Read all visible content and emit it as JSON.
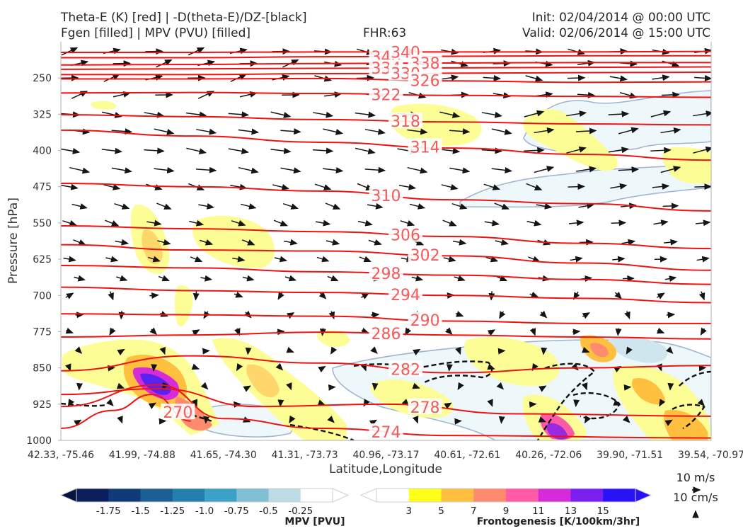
{
  "header": {
    "line1_left": "Theta-E (K) [red] | -D(theta-E)/DZ-[black]",
    "line2_left": "Fgen [filled] | MPV (PVU) [filled]",
    "fhr": "FHR:63",
    "init": "Init: 02/04/2014 @ 00:00 UTC",
    "valid": "Valid: 02/06/2014 @ 15:00 UTC"
  },
  "chart_data": {
    "type": "cross-section",
    "xlabel": "Latitude,Longitude",
    "ylabel": "Pressure [hPa]",
    "x_ticks": [
      "42.33, -75.46",
      "41.99, -74.88",
      "41.65, -74.30",
      "41.31, -73.73",
      "40.96, -73.17",
      "40.61, -72.61",
      "40.26, -72.06",
      "39.90, -71.51",
      "39.54, -70.97"
    ],
    "y_ticks": [
      250,
      325,
      400,
      475,
      550,
      625,
      700,
      775,
      850,
      925,
      1000
    ],
    "ylim": [
      1000,
      175
    ],
    "theta_e_contours": [
      {
        "label": "346",
        "pts": [
          [
            0,
            208
          ],
          [
            20,
            208
          ],
          [
            40,
            206
          ],
          [
            60,
            205
          ],
          [
            80,
            204
          ],
          [
            100,
            204
          ]
        ]
      },
      {
        "label": "340",
        "pts": [
          [
            0,
            197
          ],
          [
            20,
            197
          ],
          [
            40,
            196
          ],
          [
            60,
            196
          ],
          [
            80,
            196
          ],
          [
            100,
            195
          ]
        ]
      },
      {
        "label": "338",
        "pts": [
          [
            0,
            223
          ],
          [
            20,
            222
          ],
          [
            40,
            220
          ],
          [
            60,
            219
          ],
          [
            80,
            218
          ],
          [
            100,
            218
          ]
        ]
      },
      {
        "label": "334",
        "pts": [
          [
            0,
            232
          ],
          [
            20,
            231
          ],
          [
            40,
            230
          ],
          [
            60,
            229
          ],
          [
            80,
            228
          ],
          [
            100,
            227
          ]
        ]
      },
      {
        "label": "330",
        "pts": [
          [
            0,
            243
          ],
          [
            20,
            243
          ],
          [
            40,
            241
          ],
          [
            60,
            240
          ],
          [
            80,
            239
          ],
          [
            100,
            238
          ]
        ]
      },
      {
        "label": "326",
        "pts": [
          [
            0,
            252
          ],
          [
            20,
            252
          ],
          [
            40,
            251
          ],
          [
            60,
            256
          ],
          [
            80,
            259
          ],
          [
            100,
            258
          ]
        ]
      },
      {
        "label": "322",
        "pts": [
          [
            0,
            281
          ],
          [
            20,
            280
          ],
          [
            40,
            282
          ],
          [
            60,
            286
          ],
          [
            80,
            288
          ],
          [
            100,
            290
          ]
        ]
      },
      {
        "label": "318",
        "pts": [
          [
            0,
            326
          ],
          [
            20,
            330
          ],
          [
            40,
            336
          ],
          [
            60,
            341
          ],
          [
            80,
            345
          ],
          [
            100,
            347
          ]
        ]
      },
      {
        "label": "314",
        "pts": [
          [
            0,
            358
          ],
          [
            20,
            370
          ],
          [
            40,
            383
          ],
          [
            60,
            395
          ],
          [
            80,
            408
          ],
          [
            100,
            420
          ]
        ]
      },
      {
        "label": "310",
        "pts": [
          [
            0,
            468
          ],
          [
            20,
            475
          ],
          [
            40,
            484
          ],
          [
            60,
            502
          ],
          [
            80,
            510
          ],
          [
            100,
            525
          ]
        ]
      },
      {
        "label": "306",
        "pts": [
          [
            0,
            556
          ],
          [
            20,
            562
          ],
          [
            40,
            568
          ],
          [
            60,
            578
          ],
          [
            80,
            592
          ],
          [
            100,
            603
          ]
        ]
      },
      {
        "label": "302",
        "pts": [
          [
            0,
            595
          ],
          [
            20,
            606
          ],
          [
            40,
            608
          ],
          [
            60,
            618
          ],
          [
            80,
            633
          ],
          [
            100,
            648
          ]
        ]
      },
      {
        "label": "298",
        "pts": [
          [
            0,
            638
          ],
          [
            20,
            643
          ],
          [
            40,
            651
          ],
          [
            60,
            658
          ],
          [
            80,
            667
          ],
          [
            100,
            677
          ]
        ]
      },
      {
        "label": "294",
        "pts": [
          [
            0,
            683
          ],
          [
            20,
            690
          ],
          [
            40,
            694
          ],
          [
            60,
            700
          ],
          [
            80,
            706
          ],
          [
            100,
            715
          ]
        ]
      },
      {
        "label": "290",
        "pts": [
          [
            0,
            738
          ],
          [
            20,
            740
          ],
          [
            40,
            743
          ],
          [
            60,
            753
          ],
          [
            80,
            758
          ],
          [
            100,
            758
          ]
        ]
      },
      {
        "label": "286",
        "pts": [
          [
            0,
            786
          ],
          [
            20,
            782
          ],
          [
            40,
            776
          ],
          [
            60,
            782
          ],
          [
            80,
            786
          ],
          [
            100,
            790
          ]
        ]
      },
      {
        "label": "282",
        "pts": [
          [
            0,
            856
          ],
          [
            20,
            825
          ],
          [
            40,
            840
          ],
          [
            60,
            860
          ],
          [
            80,
            850
          ],
          [
            100,
            845
          ]
        ]
      },
      {
        "label": "278",
        "pts": [
          [
            0,
            905
          ],
          [
            15,
            893
          ],
          [
            30,
            930
          ],
          [
            50,
            925
          ],
          [
            70,
            945
          ],
          [
            100,
            950
          ]
        ]
      },
      {
        "label": "274",
        "pts": [
          [
            0,
            930
          ],
          [
            15,
            885
          ],
          [
            25,
            955
          ],
          [
            40,
            975
          ],
          [
            60,
            990
          ],
          [
            100,
            995
          ]
        ]
      },
      {
        "label": "270",
        "pts": [
          [
            0,
            975
          ],
          [
            8,
            938
          ],
          [
            14,
            905
          ],
          [
            20,
            960
          ]
        ]
      }
    ],
    "mpv_colorbar": {
      "title": "MPV [PVU]",
      "ticks": [
        "-1.75",
        "-1.5",
        "-1.25",
        "-1.0",
        "-0.75",
        "-0.5",
        "-0.25"
      ],
      "colors": [
        "#0a1f5c",
        "#103a78",
        "#1b5f93",
        "#237fae",
        "#3da0c6",
        "#80bfd6",
        "#bddce6",
        "#ffffff"
      ]
    },
    "fgen_colorbar": {
      "title": "Frontogenesis [K/100km/3hr]",
      "ticks": [
        "3",
        "5",
        "7",
        "9",
        "11",
        "13",
        "15"
      ],
      "colors": [
        "#ffffff",
        "#ffff1a",
        "#ffc040",
        "#ff8b6e",
        "#ff5aa8",
        "#d52bd8",
        "#7a1ff0",
        "#2a12f7"
      ]
    },
    "wind_keys": [
      "10 m/s",
      "10 cm/s"
    ]
  }
}
